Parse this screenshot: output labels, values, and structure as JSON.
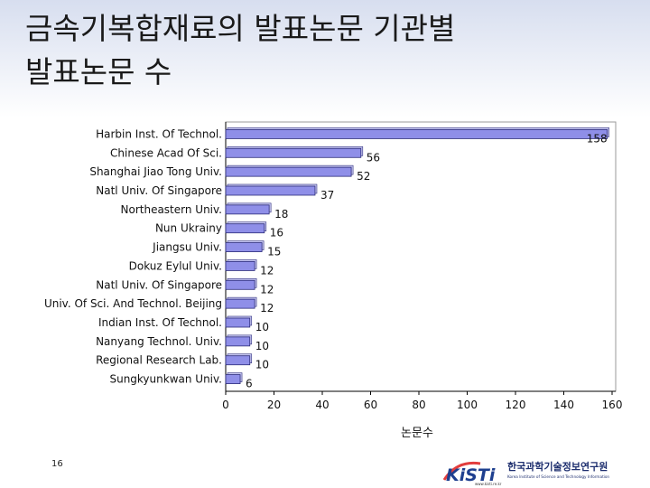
{
  "slide": {
    "title_line1": "금속기복합재료의 발표논문 기관별",
    "title_line2": "발표논문 수",
    "page_number": "16"
  },
  "logo": {
    "mark": "KiSTi",
    "name_ko": "한국과학기술정보연구원",
    "name_en": "Korea Institute of Science and Technology Information",
    "url": "www.kisti.re.kr"
  },
  "colors": {
    "bar_fill": "#8f8fe8",
    "bar_edge": "#2c2c7a",
    "header_band": "#c9d4ec"
  },
  "chart_data": {
    "type": "bar",
    "orientation": "horizontal",
    "categories": [
      "Harbin Inst. Of Technol.",
      "Chinese Acad Of Sci.",
      "Shanghai Jiao Tong Univ.",
      "Natl Univ. Of Singapore",
      "Northeastern Univ.",
      "Nun Ukrainy",
      "Jiangsu Univ.",
      "Dokuz Eylul Univ.",
      "Natl Univ. Of Singapore",
      "Univ. Of Sci. And Technol. Beijing",
      "Indian Inst. Of Technol.",
      "Nanyang Technol. Univ.",
      "Regional Research Lab.",
      "Sungkyunkwan Univ."
    ],
    "values": [
      158,
      56,
      52,
      37,
      18,
      16,
      15,
      12,
      12,
      12,
      10,
      10,
      10,
      6
    ],
    "xlabel": "논문수",
    "xlim": [
      0,
      160
    ],
    "xticks": [
      0,
      20,
      40,
      60,
      80,
      100,
      120,
      140,
      160
    ],
    "data_labels": true,
    "grid": false,
    "legend": "none"
  }
}
